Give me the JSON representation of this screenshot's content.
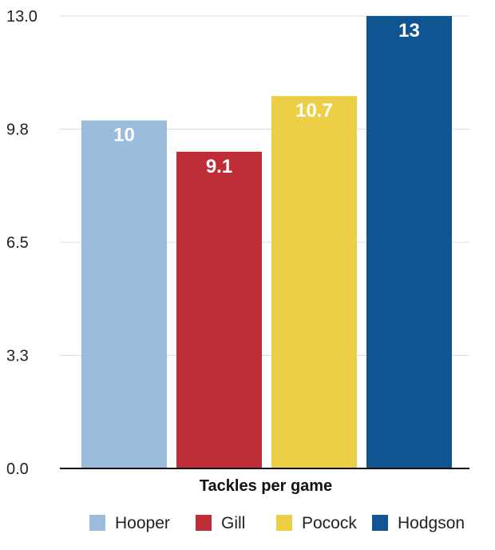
{
  "chart_data": {
    "type": "bar",
    "categories": [
      "Hooper",
      "Gill",
      "Pocock",
      "Hodgson"
    ],
    "values": [
      10,
      9.1,
      10.7,
      13
    ],
    "data_labels": [
      "10",
      "9.1",
      "10.7",
      "13"
    ],
    "colors": [
      "#9bbcdb",
      "#be2c35",
      "#eccf44",
      "#0f5592"
    ],
    "xlabel": "Tackles per game",
    "ylabel": "",
    "ylim": [
      0,
      13
    ],
    "yticks": [
      0,
      3.25,
      6.5,
      9.75,
      13
    ],
    "ytick_labels": [
      "0.0",
      "3.3",
      "6.5",
      "9.8",
      "13.0"
    ],
    "grid": true,
    "legend": {
      "placement": "bottom",
      "entries": [
        "Hooper",
        "Gill",
        "Pocock",
        "Hodgson"
      ]
    }
  }
}
